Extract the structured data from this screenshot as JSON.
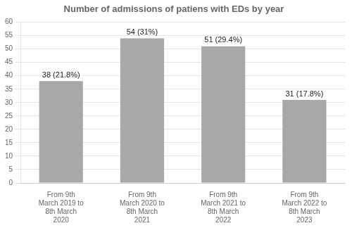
{
  "chart_data": {
    "type": "bar",
    "title": "Number of admissions of patiens with EDs by year",
    "categories": [
      "From 9th\nMarch 2019 to\n8th March\n2020",
      "From 9th\nMarch 2020 to\n8th March\n2021",
      "From 9th\nMarch 2021 to\n8th March\n2022",
      "From 9th\nMarch 2022 to\n8th March\n2023"
    ],
    "values": [
      38,
      54,
      51,
      31
    ],
    "value_labels": [
      "38 (21.8%)",
      "54 (31%)",
      "51 (29.4%)",
      "31 (17.8%)"
    ],
    "data_labels": true,
    "color": "#a8a8a8",
    "ylim": [
      0,
      60
    ],
    "yticks": [
      0,
      5,
      10,
      15,
      20,
      25,
      30,
      35,
      40,
      45,
      50,
      55,
      60
    ],
    "grid": true
  }
}
